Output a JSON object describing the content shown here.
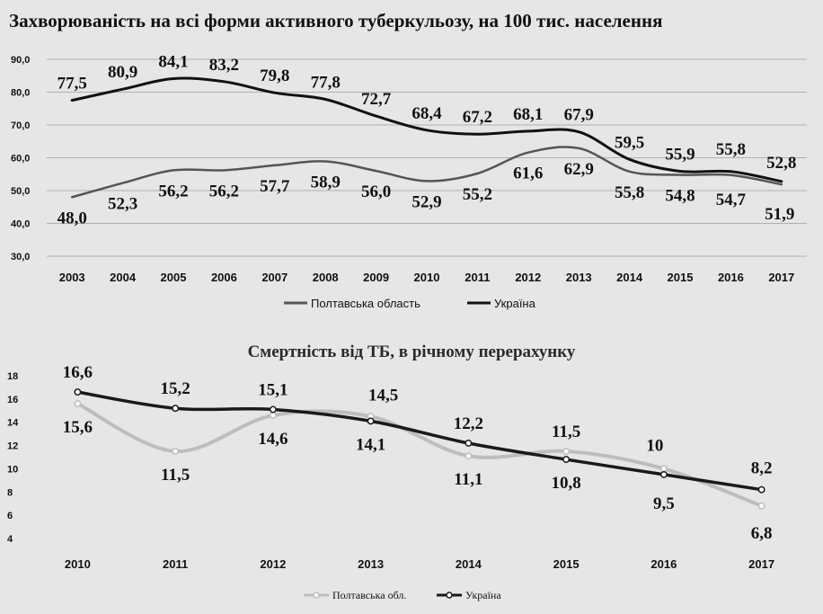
{
  "chart_data": [
    {
      "type": "line",
      "title": "Захворюваність на всі форми активного туберкульозу, на 100 тис. населення",
      "categories": [
        "2003",
        "2004",
        "2005",
        "2006",
        "2007",
        "2008",
        "2009",
        "2010",
        "2011",
        "2012",
        "2013",
        "2014",
        "2015",
        "2016",
        "2017"
      ],
      "ylim": [
        30,
        90
      ],
      "yticks": [
        "30,0",
        "40,0",
        "50,0",
        "60,0",
        "70,0",
        "80,0",
        "90,0"
      ],
      "grid": true,
      "legend_position": "bottom",
      "series": [
        {
          "name": "Полтавська область",
          "color": "#555555",
          "values": [
            48.0,
            52.3,
            56.2,
            56.2,
            57.7,
            58.9,
            56.0,
            52.9,
            55.2,
            61.6,
            62.9,
            55.8,
            54.8,
            54.7,
            51.9
          ],
          "labels": [
            "48,0",
            "52,3",
            "56,2",
            "56,2",
            "57,7",
            "58,9",
            "56,0",
            "52,9",
            "55,2",
            "61,6",
            "62,9",
            "55,8",
            "54,8",
            "54,7",
            "51,9"
          ]
        },
        {
          "name": "Україна",
          "color": "#111111",
          "values": [
            77.5,
            80.9,
            84.1,
            83.2,
            79.8,
            77.8,
            72.7,
            68.4,
            67.2,
            68.1,
            67.9,
            59.5,
            55.9,
            55.8,
            52.8
          ],
          "labels": [
            "77,5",
            "80,9",
            "84,1",
            "83,2",
            "79,8",
            "77,8",
            "72,7",
            "68,4",
            "67,2",
            "68,1",
            "67,9",
            "59,5",
            "55,9",
            "55,8",
            "52,8"
          ]
        }
      ]
    },
    {
      "type": "line",
      "title": "Смертність від ТБ, в річному перерахунку",
      "categories": [
        "2010",
        "2011",
        "2012",
        "2013",
        "2014",
        "2015",
        "2016",
        "2017"
      ],
      "ylim": [
        4,
        18
      ],
      "yticks": [
        "4",
        "6",
        "8",
        "10",
        "12",
        "14",
        "16",
        "18"
      ],
      "grid": false,
      "legend_position": "bottom",
      "series": [
        {
          "name": "Полтавська обл.",
          "color": "#bdbdbd",
          "values": [
            15.6,
            11.5,
            14.6,
            14.5,
            11.1,
            11.5,
            10,
            6.8
          ],
          "labels": [
            "15,6",
            "11,5",
            "14,6",
            "14,5",
            "11,1",
            "11,5",
            "10",
            "6,8"
          ]
        },
        {
          "name": "Україна",
          "color": "#1a1a1a",
          "values": [
            16.6,
            15.2,
            15.1,
            14.1,
            12.2,
            10.8,
            9.5,
            8.2
          ],
          "labels": [
            "16,6",
            "15,2",
            "15,1",
            "14,1",
            "12,2",
            "10,8",
            "9,5",
            "8,2"
          ]
        }
      ]
    }
  ]
}
